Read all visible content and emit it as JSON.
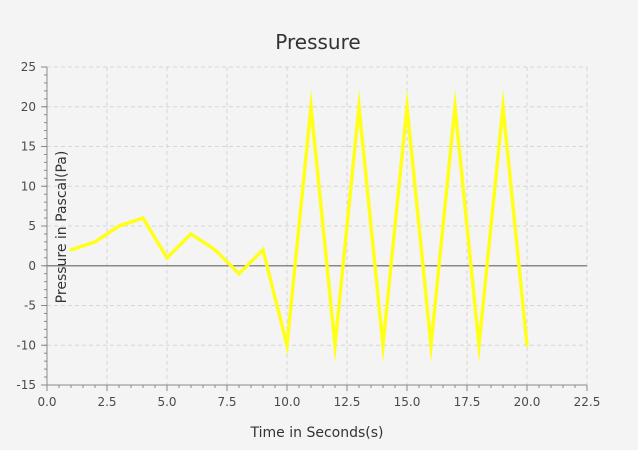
{
  "chart_data": {
    "type": "line",
    "title": "Pressure",
    "xlabel": "Time in Seconds(s)",
    "ylabel": "Pressure in Pascal(Pa)",
    "xlim": [
      0,
      22.5
    ],
    "ylim": [
      -15,
      25
    ],
    "x_ticks": [
      "0.0",
      "2.5",
      "5.0",
      "7.5",
      "10.0",
      "12.5",
      "15.0",
      "17.5",
      "20.0",
      "22.5"
    ],
    "y_ticks": [
      "25",
      "20",
      "15",
      "10",
      "5",
      "0",
      "-5",
      "-10",
      "-15"
    ],
    "grid": true,
    "series": [
      {
        "color": "#ffff1a",
        "x": [
          1,
          2,
          3,
          4,
          5,
          6,
          7,
          8,
          9,
          10,
          11,
          12,
          13,
          14,
          15,
          16,
          17,
          18,
          19,
          20
        ],
        "y": [
          2,
          3,
          5,
          6,
          1,
          4,
          2,
          -1,
          2,
          -10,
          20,
          -10,
          20,
          -10,
          20,
          -10,
          20,
          -10,
          20,
          -10
        ]
      }
    ]
  }
}
